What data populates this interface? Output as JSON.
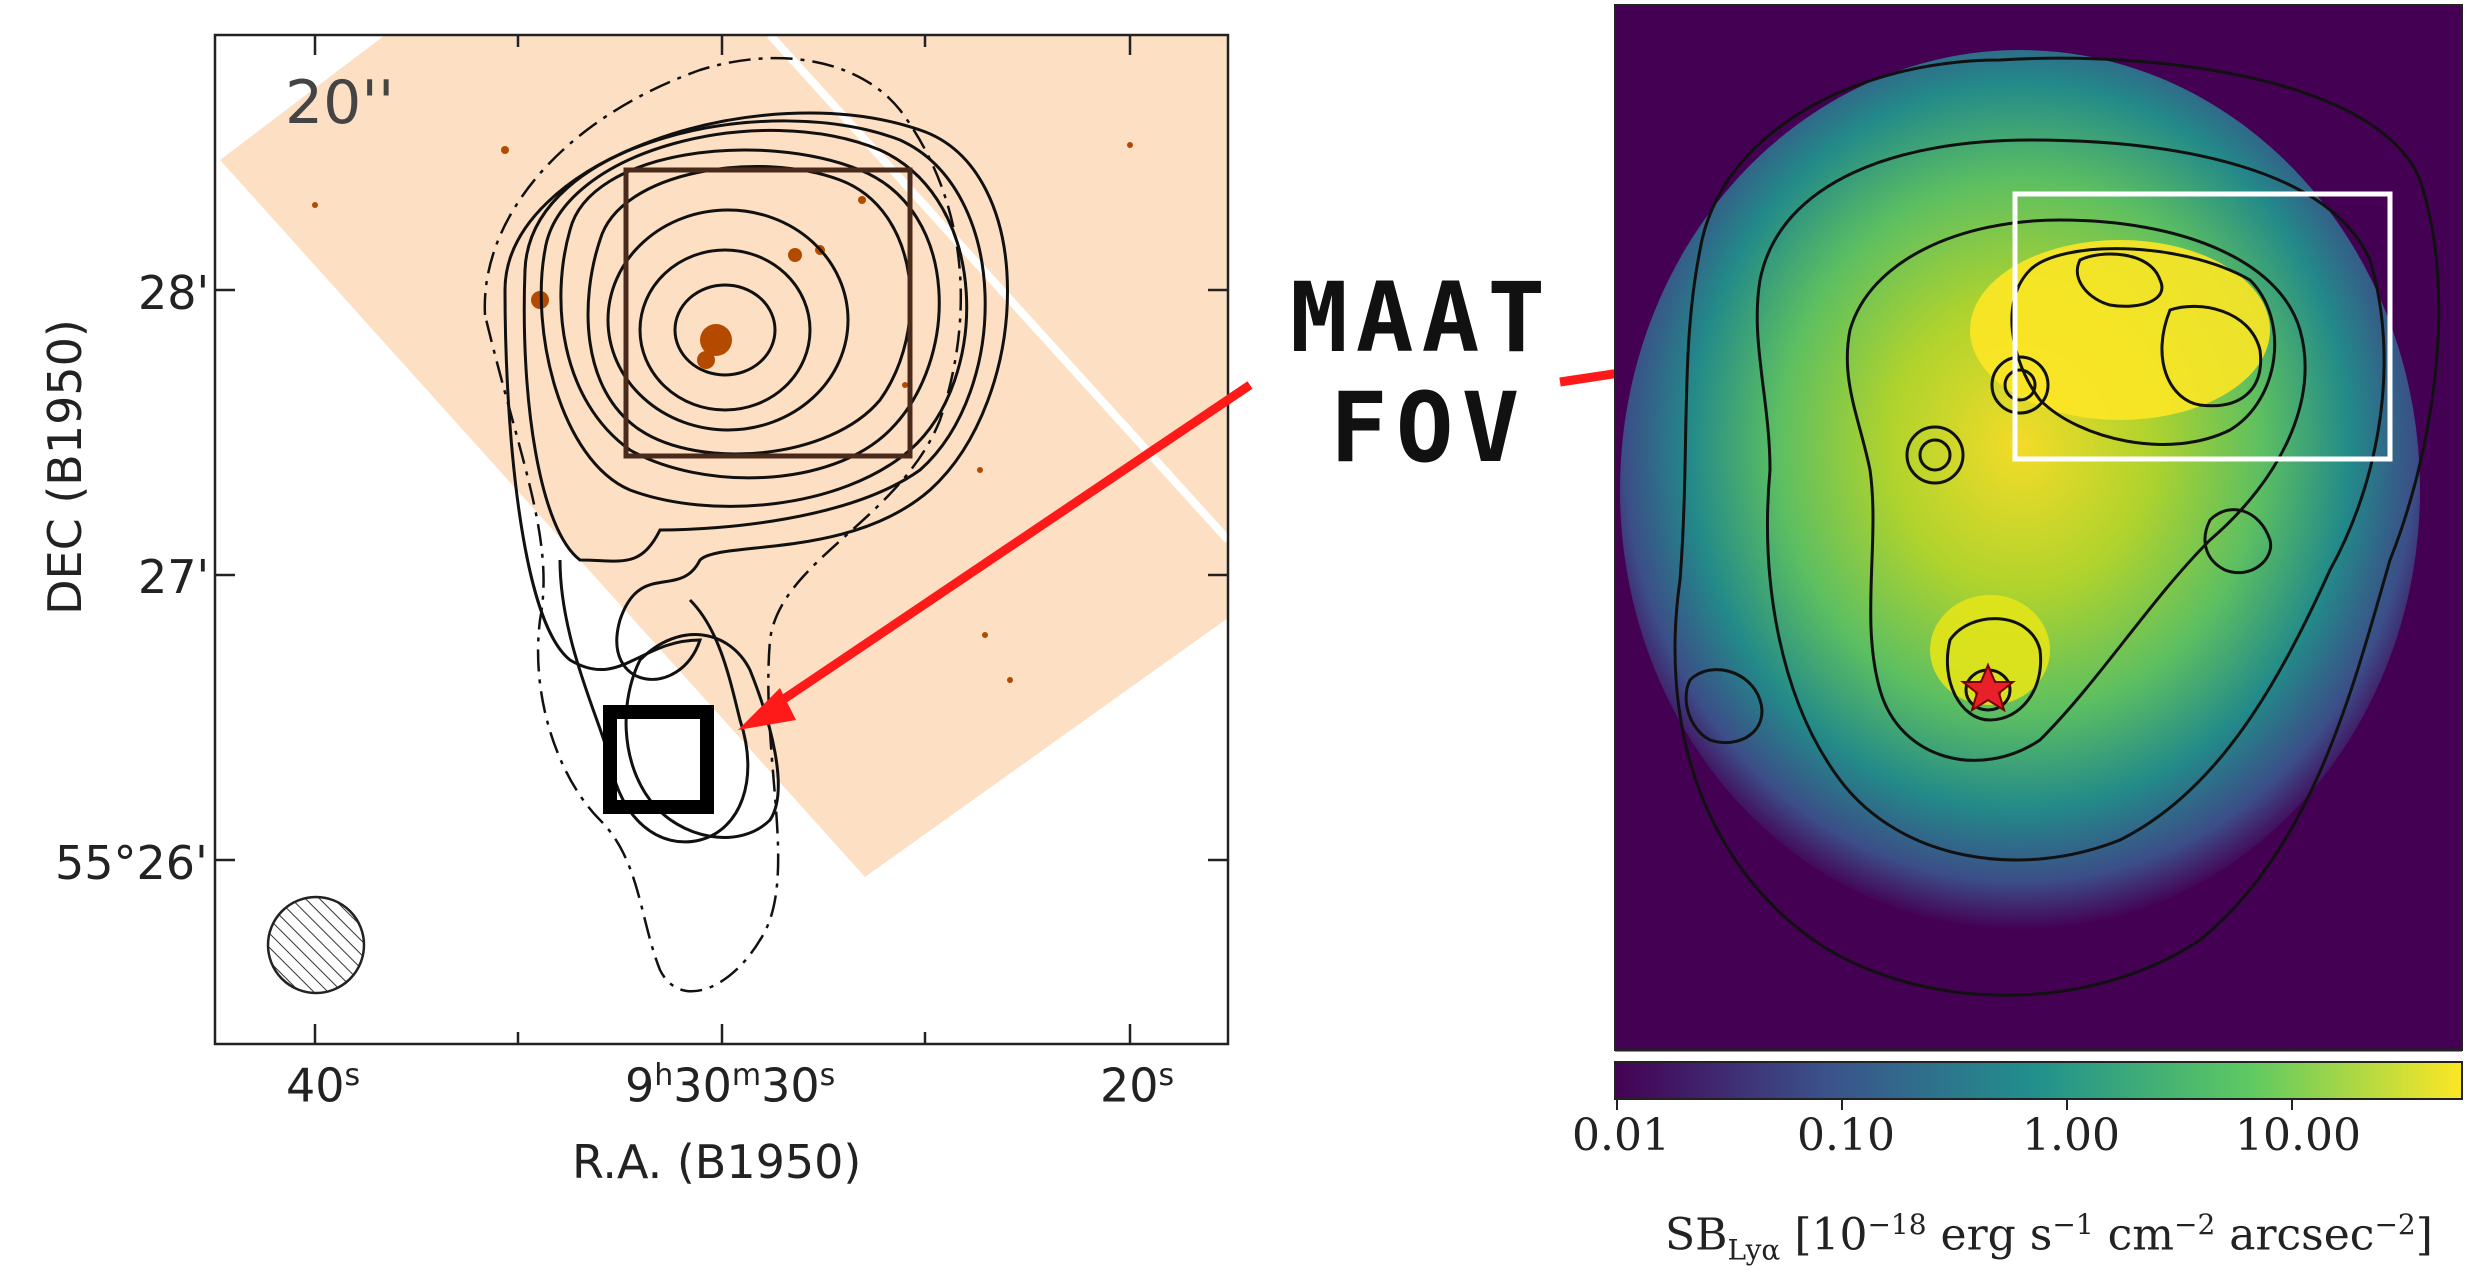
{
  "left_panel": {
    "scale_label": "20''",
    "y_axis_label": "DEC (B1950)",
    "x_axis_label": "R.A. (B1950)",
    "y_ticks": [
      "28'",
      "27'",
      "55°26'"
    ],
    "x_ticks": {
      "t40": "40",
      "t40_sup": "s",
      "center_h": "9",
      "center_h_sup": "h",
      "center_m": "30",
      "center_m_sup": "m",
      "center_s": "30",
      "center_s_sup": "s",
      "t20": "20",
      "t20_sup": "s"
    }
  },
  "annotation": {
    "line1": "MAAT",
    "line2": "FOV",
    "arrow_color": "#ff1a1a"
  },
  "right_panel": {
    "colorbar": {
      "ticks": [
        "0.01",
        "0.10",
        "1.00",
        "10.00"
      ],
      "label_main": "SB",
      "label_sub": "Lyα",
      "label_units": "[10",
      "label_exp": "−18",
      "label_rest": " erg s",
      "label_e1": "−1",
      "label_cm": " cm",
      "label_e2": "−2",
      "label_arc": " arcsec",
      "label_e3": "−2",
      "label_close": "]",
      "colors": [
        "#440154",
        "#3b528b",
        "#21918c",
        "#5ec962",
        "#fde725"
      ]
    },
    "background_color": "#440154",
    "marker": "star-marker"
  }
}
